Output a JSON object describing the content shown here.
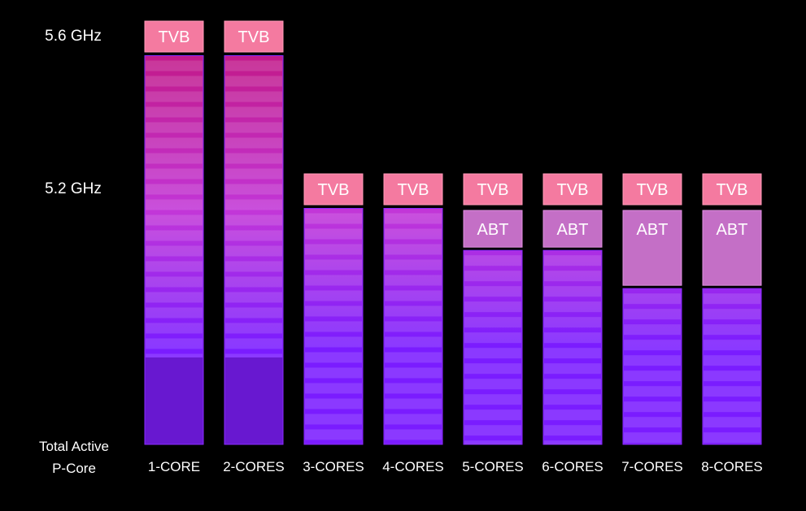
{
  "chart_data": {
    "type": "bar",
    "y_axis_title": "",
    "x_axis_title": [
      "Total Active",
      "P-Core"
    ],
    "y_ticks": [
      {
        "label": "5.6 GHz",
        "value": 5.6
      },
      {
        "label": "5.2 GHz",
        "value": 5.2
      }
    ],
    "ylim": [
      4.53,
      5.6
    ],
    "categories": [
      "1-CORE",
      "2-CORES",
      "3-CORES",
      "4-CORES",
      "5-CORES",
      "6-CORES",
      "7-CORES",
      "8-CORES"
    ],
    "tvb_label": "TVB",
    "abt_label": "ABT",
    "tvb_ghz": [
      5.6,
      5.6,
      5.2,
      5.2,
      5.2,
      5.2,
      5.2,
      5.2
    ],
    "base_ghz": [
      5.55,
      5.55,
      5.15,
      5.15,
      5.04,
      5.04,
      4.94,
      4.94
    ],
    "has_abt": [
      false,
      false,
      false,
      false,
      true,
      true,
      true,
      true
    ],
    "colors": {
      "background": "#000000",
      "tvb": "#f47aa0",
      "abt": "#c46fc6",
      "bar_top": "#c21a8a",
      "bar_mid": "#c236d8",
      "bar_low": "#7a1cff",
      "bar_bottom": "#6818d0",
      "text": "#ffffff"
    }
  }
}
